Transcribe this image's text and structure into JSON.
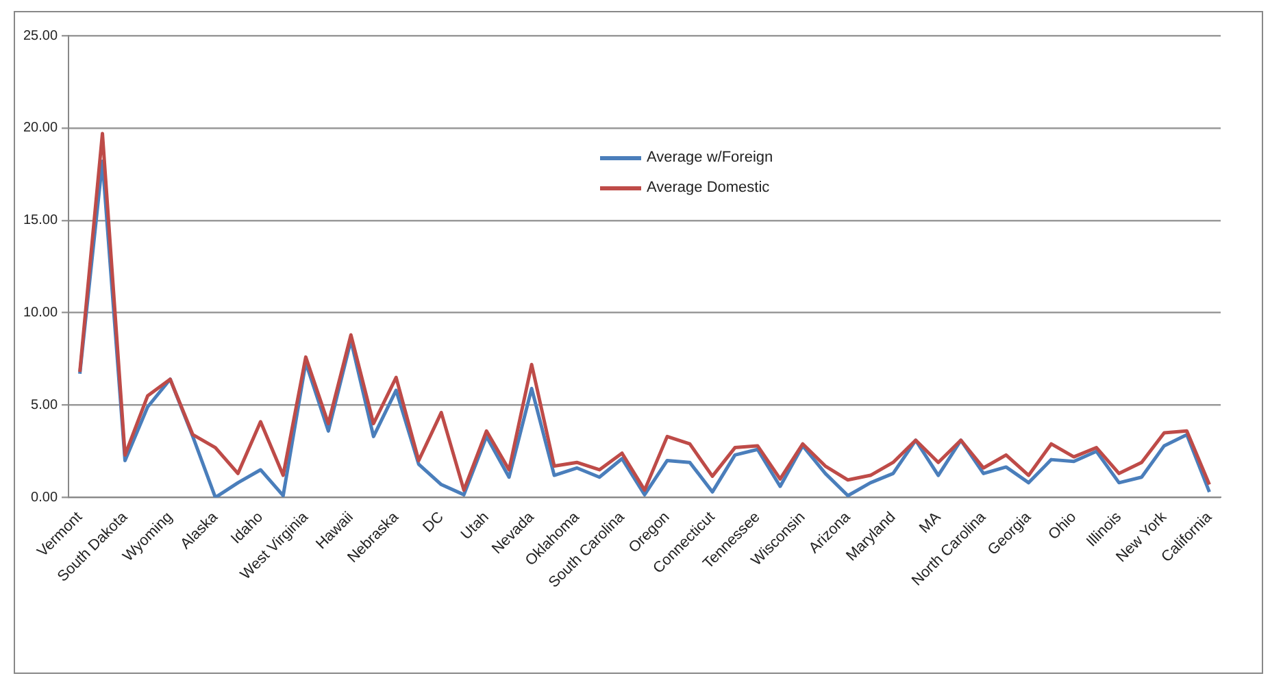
{
  "chart_data": {
    "type": "line",
    "categories": [
      "Vermont",
      null,
      "South Dakota",
      null,
      "Wyoming",
      null,
      "Alaska",
      null,
      "Idaho",
      null,
      "West Virginia",
      null,
      "Hawaii",
      null,
      "Nebraska",
      null,
      "DC",
      null,
      "Utah",
      null,
      "Nevada",
      null,
      "Oklahoma",
      null,
      "South Carolina",
      null,
      "Oregon",
      null,
      "Connecticut",
      null,
      "Tennessee",
      null,
      "Wisconsin",
      null,
      "Arizona",
      null,
      "Maryland",
      null,
      "MA",
      null,
      "North Carolina",
      null,
      "Georgia",
      null,
      "Ohio",
      null,
      "Illinois",
      null,
      "New York",
      null,
      "California"
    ],
    "series": [
      {
        "name": "Average w/Foreign",
        "color": "#4a7ebb",
        "values": [
          6.7,
          18.2,
          2.0,
          4.9,
          6.4,
          3.3,
          0.0,
          0.8,
          1.5,
          0.1,
          7.3,
          3.6,
          8.5,
          3.3,
          5.8,
          1.8,
          0.7,
          0.15,
          3.3,
          1.1,
          5.9,
          1.2,
          1.6,
          1.1,
          2.1,
          0.15,
          2.0,
          1.9,
          0.3,
          2.3,
          2.6,
          0.6,
          2.8,
          1.3,
          0.1,
          0.8,
          1.3,
          3.1,
          1.2,
          3.1,
          1.3,
          1.65,
          0.8,
          2.05,
          1.95,
          2.5,
          0.8,
          1.1,
          2.8,
          3.4,
          0.3
        ]
      },
      {
        "name": "Average Domestic",
        "color": "#be4b48",
        "values": [
          6.8,
          19.7,
          2.3,
          5.5,
          6.4,
          3.4,
          2.7,
          1.3,
          4.1,
          1.2,
          7.6,
          4.0,
          8.8,
          4.0,
          6.5,
          2.0,
          4.6,
          0.4,
          3.6,
          1.5,
          7.2,
          1.7,
          1.9,
          1.5,
          2.4,
          0.4,
          3.3,
          2.9,
          1.15,
          2.7,
          2.8,
          1.0,
          2.9,
          1.7,
          0.95,
          1.2,
          1.9,
          3.1,
          1.9,
          3.1,
          1.6,
          2.3,
          1.2,
          2.9,
          2.2,
          2.7,
          1.3,
          1.9,
          3.5,
          3.6,
          0.7
        ]
      }
    ],
    "ylim": [
      0,
      25
    ],
    "yticks": [
      {
        "value": 0,
        "label": "0.00"
      },
      {
        "value": 5,
        "label": "5.00"
      },
      {
        "value": 10,
        "label": "10.00"
      },
      {
        "value": 15,
        "label": "15.00"
      },
      {
        "value": 20,
        "label": "20.00"
      },
      {
        "value": 25,
        "label": "25.00"
      }
    ],
    "grid": "y",
    "legend": "top",
    "marker": "none",
    "line_style": "solid"
  }
}
